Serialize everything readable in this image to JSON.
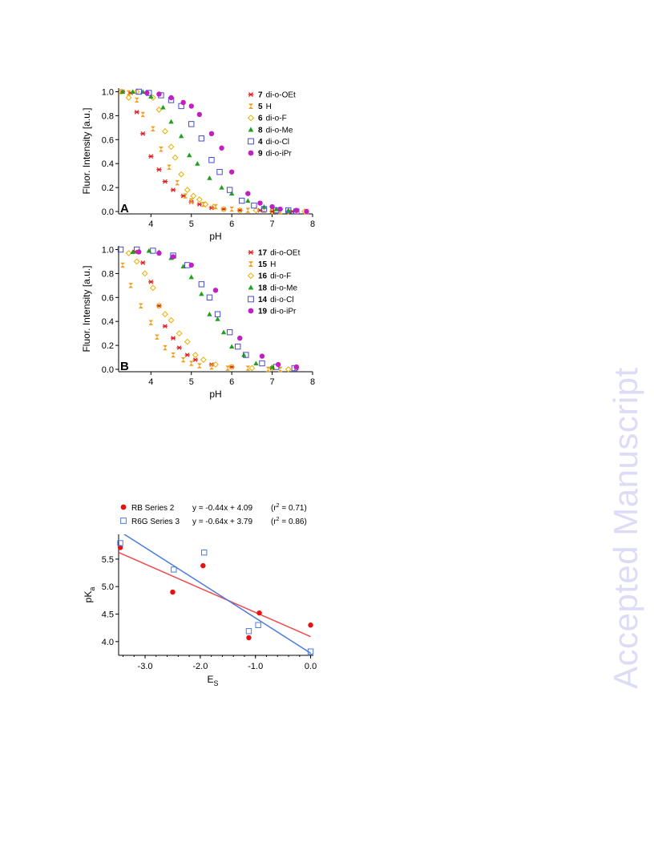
{
  "watermark": "Accepted Manuscript",
  "chart_data": [
    {
      "type": "scatter",
      "panel_label": "A",
      "xlabel": "pH",
      "ylabel": "Fluor. Intensity [a.u.]",
      "xlim": [
        3.2,
        8.0
      ],
      "ylim": [
        -0.02,
        1.03
      ],
      "xticks": [
        4,
        5,
        6,
        7,
        8
      ],
      "xtick_labels": [
        "4",
        "5",
        "6",
        "7",
        "8"
      ],
      "yticks": [
        0.0,
        0.2,
        0.4,
        0.6,
        0.8,
        1.0
      ],
      "ytick_labels": [
        "0.0",
        "0.2",
        "0.4",
        "0.6",
        "0.8",
        "1.0"
      ],
      "legend_position": "top-right",
      "series": [
        {
          "name": "di-o-OEt",
          "compound": "7",
          "marker": "asterisk",
          "color": "#e02020",
          "x": [
            3.3,
            3.5,
            3.65,
            3.8,
            4.0,
            4.2,
            4.35,
            4.55,
            4.8,
            5.0,
            5.2,
            5.5,
            5.8,
            6.2,
            6.7,
            7.0,
            7.5
          ],
          "y": [
            1.0,
            0.99,
            0.83,
            0.65,
            0.46,
            0.35,
            0.25,
            0.18,
            0.13,
            0.08,
            0.06,
            0.03,
            0.02,
            0.01,
            0.01,
            0.0,
            0.0
          ]
        },
        {
          "name": "H",
          "compound": "5",
          "marker": "hourglass",
          "color": "#f0a020",
          "x": [
            3.25,
            3.45,
            3.65,
            3.8,
            4.05,
            4.25,
            4.45,
            4.65,
            4.85,
            5.0,
            5.3,
            5.6,
            6.0,
            6.4,
            6.8,
            7.2,
            7.6,
            7.85
          ],
          "y": [
            1.0,
            0.99,
            0.93,
            0.81,
            0.69,
            0.52,
            0.37,
            0.24,
            0.13,
            0.09,
            0.06,
            0.04,
            0.02,
            0.01,
            0.01,
            0.0,
            0.0,
            0.0
          ]
        },
        {
          "name": "di-o-F",
          "compound": "6",
          "marker": "diamond-open",
          "color": "#e8b000",
          "x": [
            3.45,
            3.65,
            4.05,
            4.2,
            4.35,
            4.5,
            4.6,
            4.75,
            4.9,
            5.05,
            5.2,
            5.35,
            5.55,
            5.8,
            6.2,
            6.6,
            7.0,
            7.4,
            7.8
          ],
          "y": [
            0.95,
            1.0,
            0.95,
            0.85,
            0.67,
            0.54,
            0.45,
            0.31,
            0.18,
            0.13,
            0.1,
            0.06,
            0.04,
            0.02,
            0.01,
            0.01,
            0.0,
            0.0,
            0.0
          ]
        },
        {
          "name": "di-o-Me",
          "compound": "8",
          "marker": "triangle",
          "color": "#20a020",
          "x": [
            3.3,
            3.55,
            3.8,
            4.0,
            4.3,
            4.5,
            4.75,
            4.95,
            5.15,
            5.45,
            5.75,
            6.0,
            6.4,
            6.8,
            7.1,
            7.4
          ],
          "y": [
            1.0,
            1.0,
            1.0,
            0.96,
            0.87,
            0.75,
            0.63,
            0.47,
            0.4,
            0.28,
            0.2,
            0.15,
            0.09,
            0.04,
            0.02,
            0.01
          ]
        },
        {
          "name": "di-o-Cl",
          "compound": "4",
          "marker": "square-open",
          "color": "#4a4ad0",
          "x": [
            3.7,
            3.95,
            4.25,
            4.5,
            4.75,
            5.0,
            5.25,
            5.5,
            5.7,
            5.95,
            6.25,
            6.55,
            6.8,
            7.1,
            7.4,
            7.6
          ],
          "y": [
            1.0,
            0.99,
            0.97,
            0.93,
            0.88,
            0.73,
            0.61,
            0.43,
            0.33,
            0.18,
            0.09,
            0.05,
            0.02,
            0.01,
            0.01,
            0.0
          ]
        },
        {
          "name": "di-o-iPr",
          "compound": "9",
          "marker": "circle",
          "color": "#c020c0",
          "x": [
            3.9,
            4.2,
            4.5,
            4.8,
            5.0,
            5.2,
            5.5,
            5.75,
            6.0,
            6.4,
            6.7,
            7.0,
            7.2,
            7.6,
            7.85
          ],
          "y": [
            0.99,
            0.98,
            0.95,
            0.91,
            0.88,
            0.81,
            0.65,
            0.53,
            0.33,
            0.15,
            0.07,
            0.04,
            0.02,
            0.01,
            0.0
          ]
        }
      ]
    },
    {
      "type": "scatter",
      "panel_label": "B",
      "xlabel": "pH",
      "ylabel": "Fluor. Intensity [a.u.]",
      "xlim": [
        3.2,
        8.0
      ],
      "ylim": [
        -0.02,
        1.03
      ],
      "xticks": [
        4,
        5,
        6,
        7,
        8
      ],
      "xtick_labels": [
        "4",
        "5",
        "6",
        "7",
        "8"
      ],
      "yticks": [
        0.0,
        0.2,
        0.4,
        0.6,
        0.8,
        1.0
      ],
      "ytick_labels": [
        "0.0",
        "0.2",
        "0.4",
        "0.6",
        "0.8",
        "1.0"
      ],
      "legend_position": "top-right",
      "series": [
        {
          "name": "di-o-OEt",
          "compound": "17",
          "marker": "asterisk",
          "color": "#e02020",
          "x": [
            3.6,
            3.8,
            4.0,
            4.2,
            4.35,
            4.55,
            4.7,
            4.9,
            5.1,
            5.5,
            6.0,
            7.0,
            7.6
          ],
          "y": [
            0.98,
            0.89,
            0.73,
            0.53,
            0.36,
            0.26,
            0.18,
            0.12,
            0.08,
            0.04,
            0.02,
            0.01,
            0.01
          ]
        },
        {
          "name": "H",
          "compound": "15",
          "marker": "hourglass",
          "color": "#f0a020",
          "x": [
            3.3,
            3.5,
            3.75,
            4.0,
            4.15,
            4.35,
            4.55,
            4.8,
            5.0,
            5.2,
            5.5,
            5.9,
            6.4,
            6.9,
            7.2
          ],
          "y": [
            0.87,
            0.7,
            0.53,
            0.39,
            0.27,
            0.18,
            0.12,
            0.08,
            0.05,
            0.03,
            0.02,
            0.01,
            0.01,
            0.0,
            0.0
          ]
        },
        {
          "name": "di-o-F",
          "compound": "16",
          "marker": "diamond-open",
          "color": "#e8b000",
          "x": [
            3.45,
            3.65,
            3.85,
            4.05,
            4.2,
            4.35,
            4.5,
            4.7,
            4.9,
            5.1,
            5.3,
            5.6,
            6.0,
            6.5,
            7.0,
            7.4
          ],
          "y": [
            0.97,
            0.9,
            0.8,
            0.68,
            0.53,
            0.46,
            0.41,
            0.3,
            0.23,
            0.12,
            0.08,
            0.04,
            0.02,
            0.01,
            0.01,
            0.0
          ]
        },
        {
          "name": "di-o-Me",
          "compound": "18",
          "marker": "triangle",
          "color": "#20a020",
          "x": [
            3.55,
            3.95,
            4.2,
            4.5,
            4.8,
            5.0,
            5.25,
            5.45,
            5.65,
            5.8,
            6.0,
            6.3,
            6.6,
            7.0
          ],
          "y": [
            0.98,
            0.99,
            0.98,
            0.93,
            0.86,
            0.77,
            0.63,
            0.46,
            0.42,
            0.31,
            0.19,
            0.12,
            0.05,
            0.02
          ]
        },
        {
          "name": "di-o-Cl",
          "compound": "14",
          "marker": "square-open",
          "color": "#4a4ad0",
          "x": [
            3.25,
            3.65,
            4.05,
            4.55,
            4.9,
            5.25,
            5.45,
            5.65,
            5.95,
            6.15,
            6.35,
            6.75,
            7.1,
            7.55
          ],
          "y": [
            1.0,
            1.0,
            0.99,
            0.95,
            0.87,
            0.71,
            0.6,
            0.46,
            0.31,
            0.19,
            0.12,
            0.05,
            0.02,
            0.01
          ]
        },
        {
          "name": "di-o-iPr",
          "compound": "19",
          "marker": "circle",
          "color": "#c020c0",
          "x": [
            3.7,
            4.2,
            4.55,
            5.0,
            5.6,
            6.2,
            6.75,
            7.15,
            7.6
          ],
          "y": [
            0.98,
            0.97,
            0.94,
            0.87,
            0.66,
            0.26,
            0.11,
            0.04,
            0.02
          ]
        }
      ]
    },
    {
      "type": "scatter",
      "xlabel_main": "E",
      "xlabel_sub": "S",
      "ylabel_main": "pK",
      "ylabel_sub": "a",
      "xlim": [
        -3.48,
        0.05
      ],
      "ylim": [
        3.75,
        5.95
      ],
      "xticks": [
        -3.0,
        -2.0,
        -1.0,
        0.0
      ],
      "xtick_labels": [
        "-3.0",
        "-2.0",
        "-1.0",
        "0.0"
      ],
      "yticks": [
        4.0,
        4.5,
        5.0,
        5.5
      ],
      "ytick_labels": [
        "4.0",
        "4.5",
        "5.0",
        "5.5"
      ],
      "legend_position": "top",
      "series": [
        {
          "name": "RB Series 2",
          "marker": "circle",
          "color": "#e81010",
          "equation": "y =  -0.44x + 4.09",
          "r2_prefix": "(r",
          "r2_exp": "2",
          "r2_suffix": " = 0.71)",
          "fit": {
            "slope": -0.44,
            "intercept": 4.09
          },
          "x": [
            -3.45,
            -2.5,
            -1.95,
            -1.12,
            -0.93,
            0.0
          ],
          "y": [
            5.71,
            4.9,
            5.38,
            4.07,
            4.52,
            4.3
          ]
        },
        {
          "name": "R6G Series 3",
          "marker": "square-open",
          "color": "#4a7ae0",
          "equation": "y = -0.64x + 3.79",
          "r2_prefix": "(r",
          "r2_exp": "2",
          "r2_suffix": " = 0.86)",
          "fit": {
            "slope": -0.64,
            "intercept": 3.79
          },
          "x": [
            -3.45,
            -2.48,
            -1.93,
            -1.12,
            -0.95,
            0.0
          ],
          "y": [
            5.79,
            5.31,
            5.62,
            4.19,
            4.3,
            3.82
          ]
        }
      ]
    }
  ]
}
